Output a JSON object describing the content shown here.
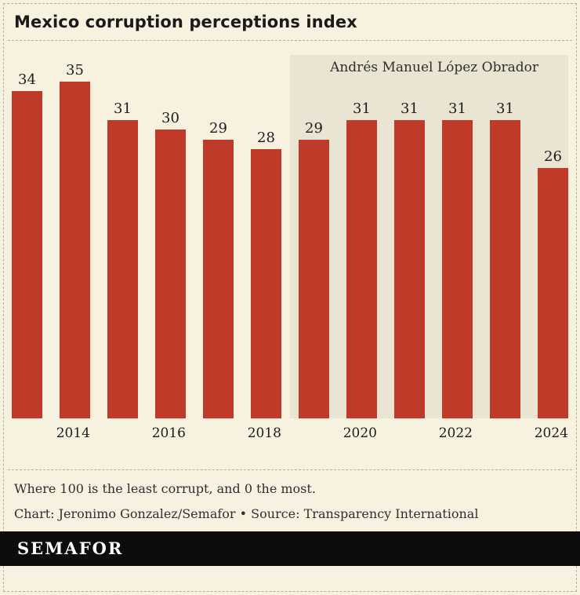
{
  "header": {
    "title": "Mexico corruption perceptions index"
  },
  "chart_data": {
    "type": "bar",
    "title": "Mexico corruption perceptions index",
    "categories": [
      "2013",
      "2014",
      "2015",
      "2016",
      "2017",
      "2018",
      "2019",
      "2020",
      "2021",
      "2022",
      "2023",
      "2024"
    ],
    "values": [
      34,
      35,
      31,
      30,
      29,
      28,
      29,
      31,
      31,
      31,
      31,
      26
    ],
    "x_tick_labels": [
      "2014",
      "2016",
      "2018",
      "2020",
      "2022",
      "2024"
    ],
    "ylim": [
      0,
      35
    ],
    "grid": false,
    "legend": "none",
    "bar_color": "#bf3a28",
    "annotation": {
      "label": "Andrés Manuel López Obrador",
      "start_category": "2019",
      "end_category": "2024",
      "band_color": "#eae5d2"
    }
  },
  "notes": {
    "description": "Where 100 is the least corrupt, and 0 the most.",
    "credit": "Chart: Jeronimo Gonzalez/Semafor • Source: Transparency International"
  },
  "footer": {
    "logo_text": "SEMAFOR"
  },
  "colors": {
    "background": "#f7f2e0",
    "band": "#eae5d2",
    "bar": "#bf3a28",
    "text": "#1a1a1a",
    "muted_text": "#2e2e2e",
    "divider": "#b6af9d",
    "footer_background": "#0d0d0d",
    "footer_text": "#ffffff"
  }
}
